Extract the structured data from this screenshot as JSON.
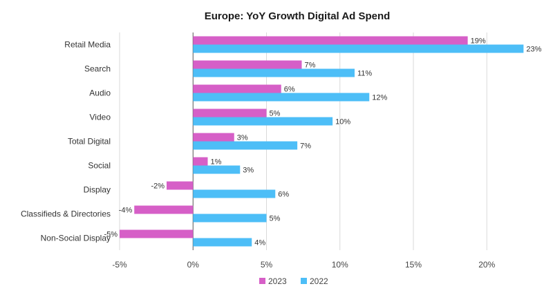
{
  "chart_data": {
    "type": "bar",
    "orientation": "horizontal",
    "title": "Europe: YoY Growth Digital Ad Spend",
    "categories": [
      "Retail Media",
      "Search",
      "Audio",
      "Video",
      "Total Digital",
      "Social",
      "Display",
      "Classifieds & Directories",
      "Non-Social Display"
    ],
    "series": [
      {
        "name": "2023",
        "color": "#d65fc7",
        "values": [
          18.7,
          7.4,
          6.0,
          5.0,
          2.8,
          1.0,
          -1.8,
          -4.0,
          -5.0
        ],
        "labels": [
          "19%",
          "7%",
          "6%",
          "5%",
          "3%",
          "1%",
          "-2%",
          "-4%",
          "-5%"
        ]
      },
      {
        "name": "2022",
        "color": "#4dbef7",
        "values": [
          22.5,
          11.0,
          12.0,
          9.5,
          7.1,
          3.2,
          5.6,
          5.0,
          4.0
        ],
        "labels": [
          "23%",
          "11%",
          "12%",
          "10%",
          "7%",
          "3%",
          "6%",
          "5%",
          "4%"
        ]
      }
    ],
    "xlim": [
      -5,
      23
    ],
    "xticks": [
      -5,
      0,
      5,
      10,
      15,
      20
    ],
    "xtick_labels": [
      "-5%",
      "0%",
      "5%",
      "10%",
      "15%",
      "20%"
    ],
    "xlabel": "",
    "ylabel": "",
    "grid": "vertical",
    "legend_position": "bottom-center"
  }
}
